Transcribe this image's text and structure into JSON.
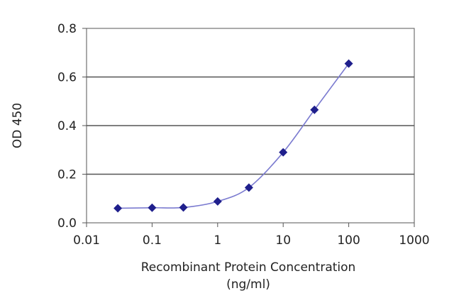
{
  "chart_data": {
    "type": "line",
    "xscale": "log",
    "xlabel": "Recombinant  Protein  Concentration",
    "xlabel_units": "(ng/ml)",
    "ylabel": "OD 450",
    "xlim": [
      0.01,
      1000
    ],
    "ylim": [
      0,
      0.8
    ],
    "x_ticks": [
      0.01,
      0.1,
      1,
      10,
      100,
      1000
    ],
    "x_tick_labels": [
      "0.01",
      "0.1",
      "1",
      "10",
      "100",
      "1000"
    ],
    "y_ticks": [
      0,
      0.2,
      0.4,
      0.6,
      0.8
    ],
    "y_tick_labels": [
      "0.0",
      "0.2",
      "0.4",
      "0.6",
      "0.8"
    ],
    "grid": "horizontal",
    "series": [
      {
        "x": [
          0.03,
          0.1,
          0.3,
          1,
          3,
          10,
          30,
          100
        ],
        "y": [
          0.06,
          0.062,
          0.063,
          0.088,
          0.145,
          0.29,
          0.465,
          0.655
        ]
      }
    ],
    "colors": {
      "line": "#7b7bd0",
      "marker": "#1f1f8c",
      "grid": "#555555",
      "axis": "#555555"
    }
  }
}
